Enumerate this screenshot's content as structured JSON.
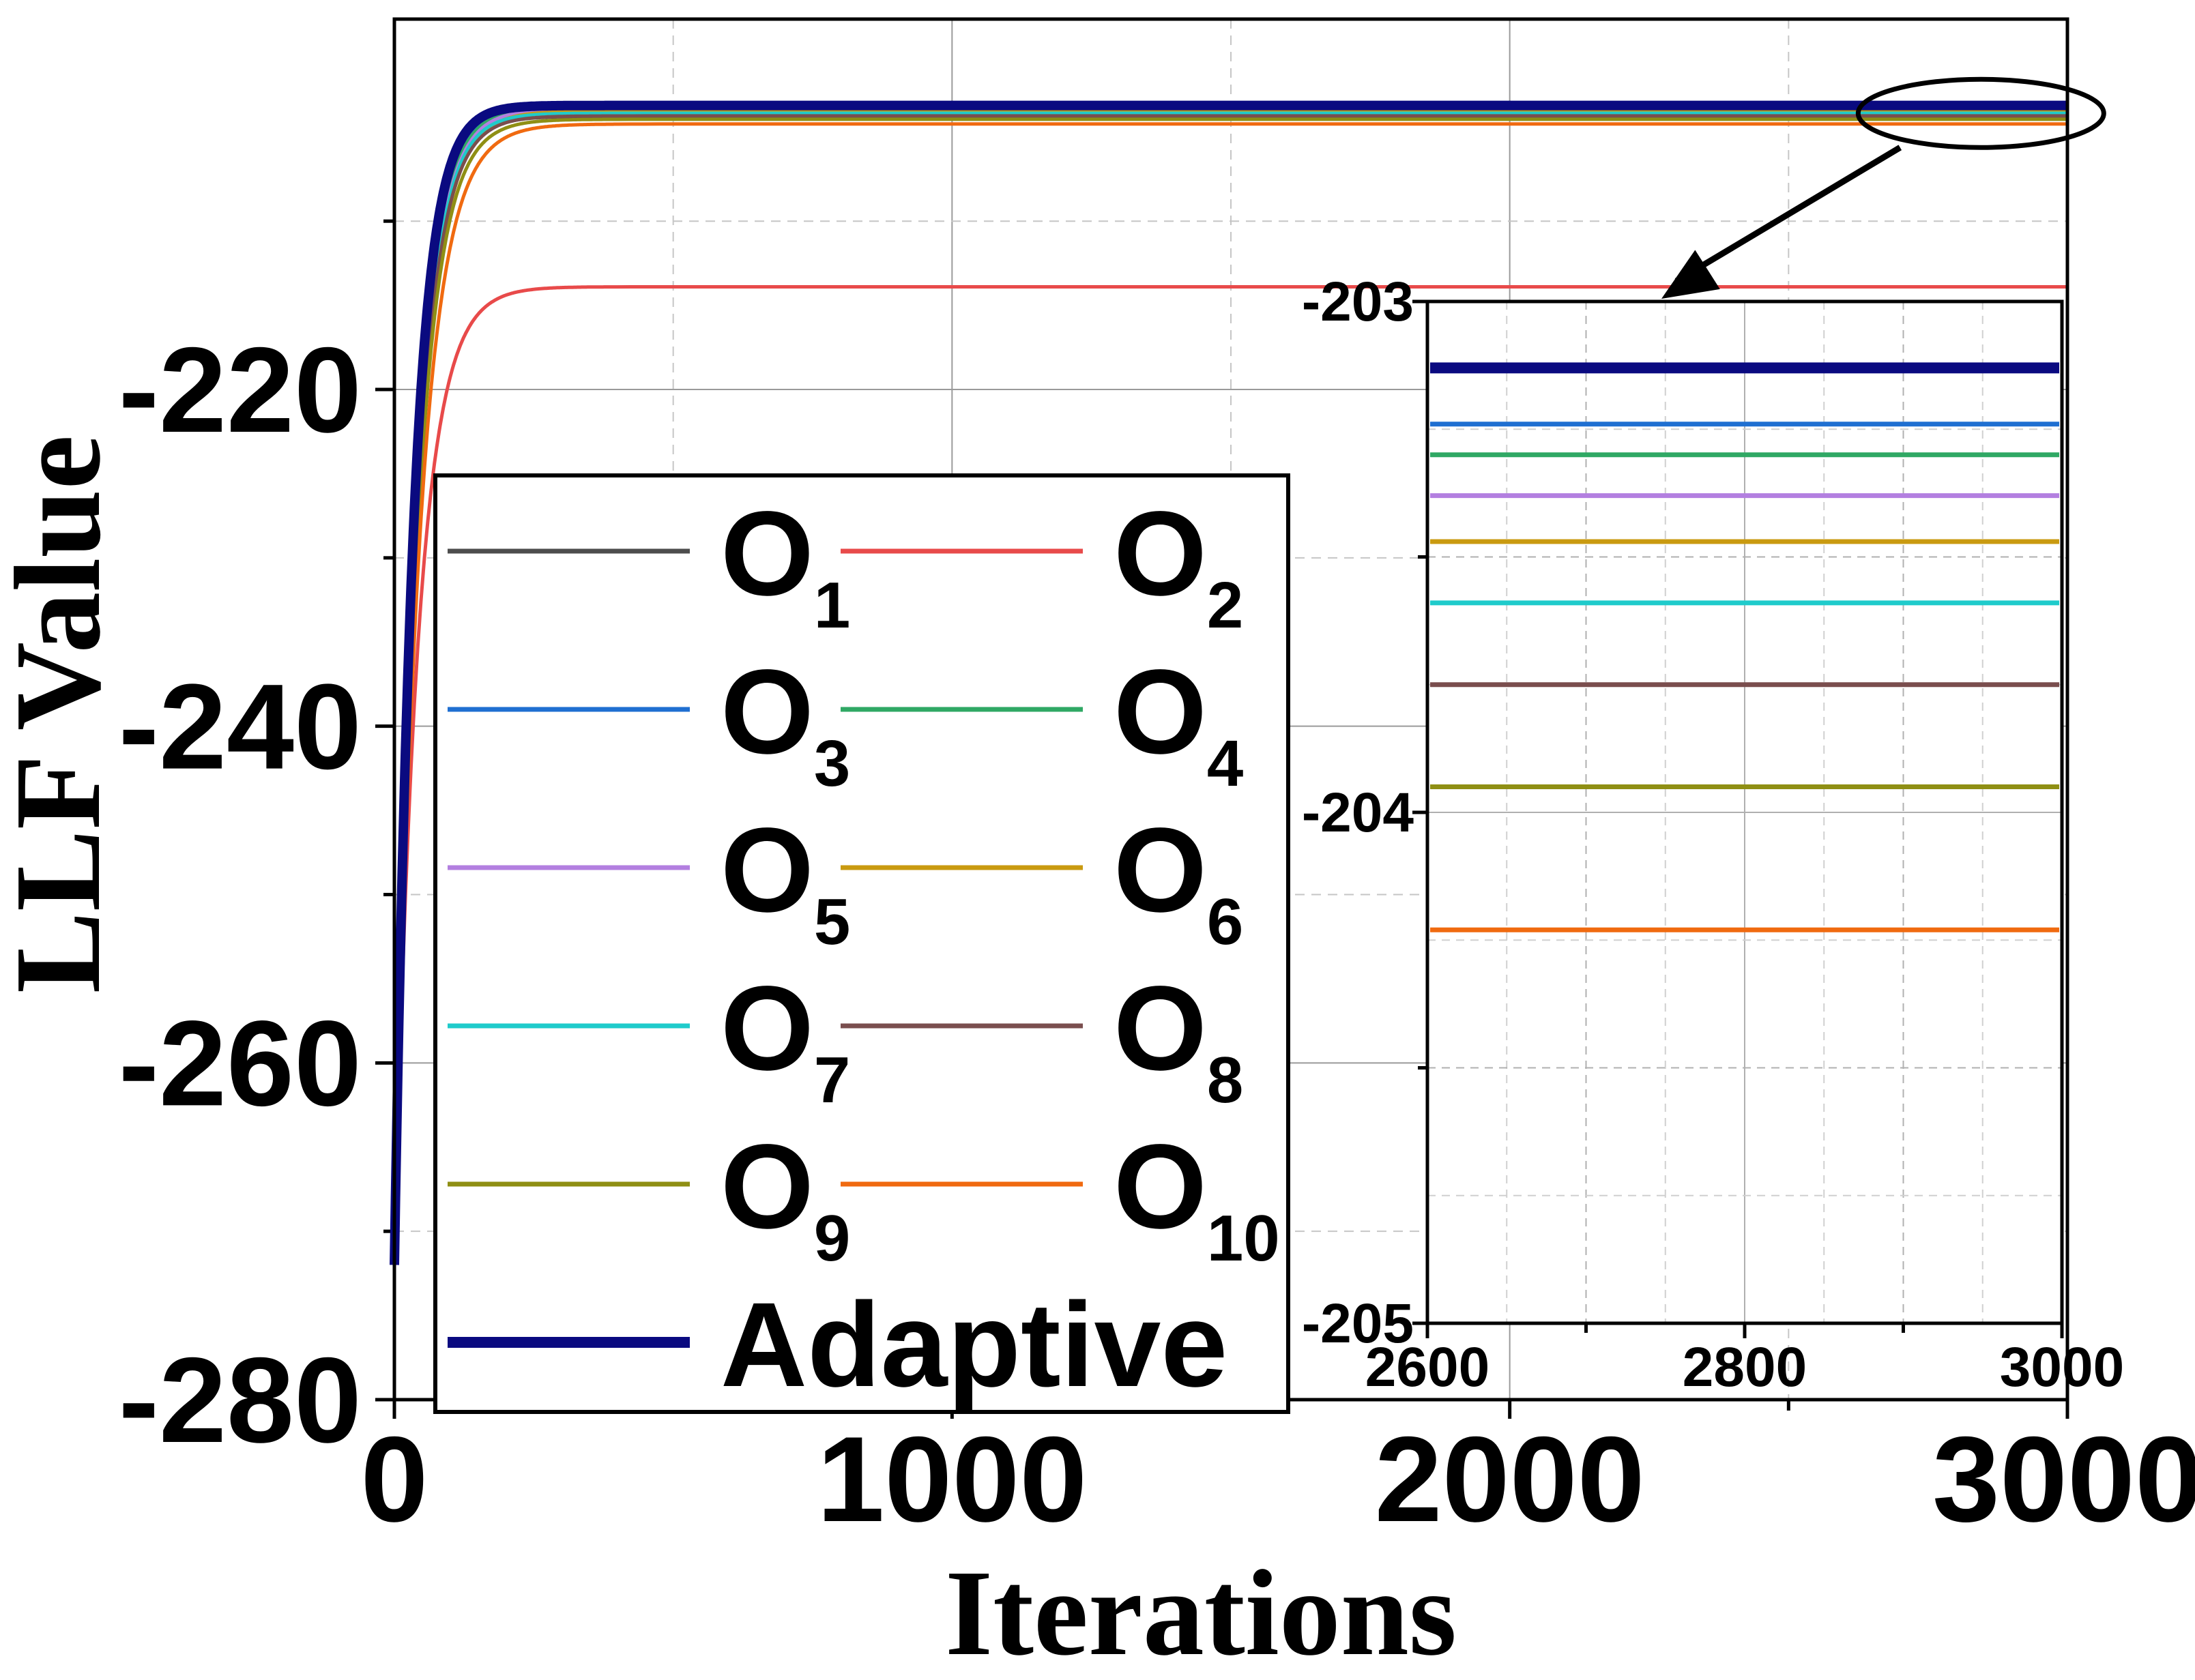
{
  "chart_data": [
    {
      "type": "line",
      "title": "",
      "xlabel": "Iterations",
      "ylabel": "LLF Value",
      "xlim": [
        0,
        3000
      ],
      "ylim": [
        -280,
        -198
      ],
      "xticks": [
        0,
        1000,
        2000,
        3000
      ],
      "xtick_labels": [
        "0",
        "1000",
        "2000",
        "3000"
      ],
      "yticks": [
        -280,
        -260,
        -240,
        -220
      ],
      "ytick_labels": [
        "-280",
        "-260",
        "-240",
        "-220"
      ],
      "grid": "on",
      "legend_placement": "center-left",
      "series": [
        {
          "name": "O",
          "sub": "1",
          "color": "#4d4d4d",
          "final": -203.78,
          "k": 38
        },
        {
          "name": "O",
          "sub": "2",
          "color": "#e84a4a",
          "final": -213.9,
          "k": 42
        },
        {
          "name": "O",
          "sub": "3",
          "color": "#1f6fd1",
          "final": -203.24,
          "k": 37
        },
        {
          "name": "O",
          "sub": "4",
          "color": "#2fa864",
          "final": -203.3,
          "k": 37
        },
        {
          "name": "O",
          "sub": "5",
          "color": "#b37fe0",
          "final": -203.38,
          "k": 38
        },
        {
          "name": "O",
          "sub": "6",
          "color": "#c99a10",
          "final": -203.47,
          "k": 40
        },
        {
          "name": "O",
          "sub": "7",
          "color": "#1fcbcb",
          "final": -203.59,
          "k": 38
        },
        {
          "name": "O",
          "sub": "8",
          "color": "#7a4e4e",
          "final": -203.75,
          "k": 39
        },
        {
          "name": "O",
          "sub": "9",
          "color": "#8f8f14",
          "final": -203.95,
          "k": 41
        },
        {
          "name": "O",
          "sub": "10",
          "color": "#f06a10",
          "final": -204.23,
          "k": 45
        },
        {
          "name": "Adaptive",
          "sub": "",
          "color": "#0a0a80",
          "final": -203.13,
          "k": 34
        }
      ]
    },
    {
      "type": "line",
      "title": "",
      "xlabel": "",
      "ylabel": "",
      "xlim": [
        2600,
        3000
      ],
      "ylim": [
        -205,
        -203
      ],
      "xticks": [
        2600,
        2800,
        3000
      ],
      "xtick_labels": [
        "2600",
        "2800",
        "3000"
      ],
      "yticks": [
        -205,
        -204,
        -203
      ],
      "ytick_labels": [
        "-205",
        "-204",
        "-203"
      ],
      "grid": "on",
      "inset": "zoom of the boxed region at the end of the main plot (right)",
      "series": [
        {
          "name": "Adaptive",
          "color": "#0a0a80",
          "value": -203.13
        },
        {
          "name": "O3",
          "color": "#1f6fd1",
          "value": -203.24
        },
        {
          "name": "O4",
          "color": "#2fa864",
          "value": -203.3
        },
        {
          "name": "O5",
          "color": "#b37fe0",
          "value": -203.38
        },
        {
          "name": "O6",
          "color": "#c99a10",
          "value": -203.47
        },
        {
          "name": "O7",
          "color": "#1fcbcb",
          "value": -203.59
        },
        {
          "name": "O8",
          "color": "#7a4e4e",
          "value": -203.75
        },
        {
          "name": "O9",
          "color": "#8f8f14",
          "value": -203.95
        },
        {
          "name": "O10",
          "color": "#f06a10",
          "value": -204.23
        }
      ]
    }
  ]
}
